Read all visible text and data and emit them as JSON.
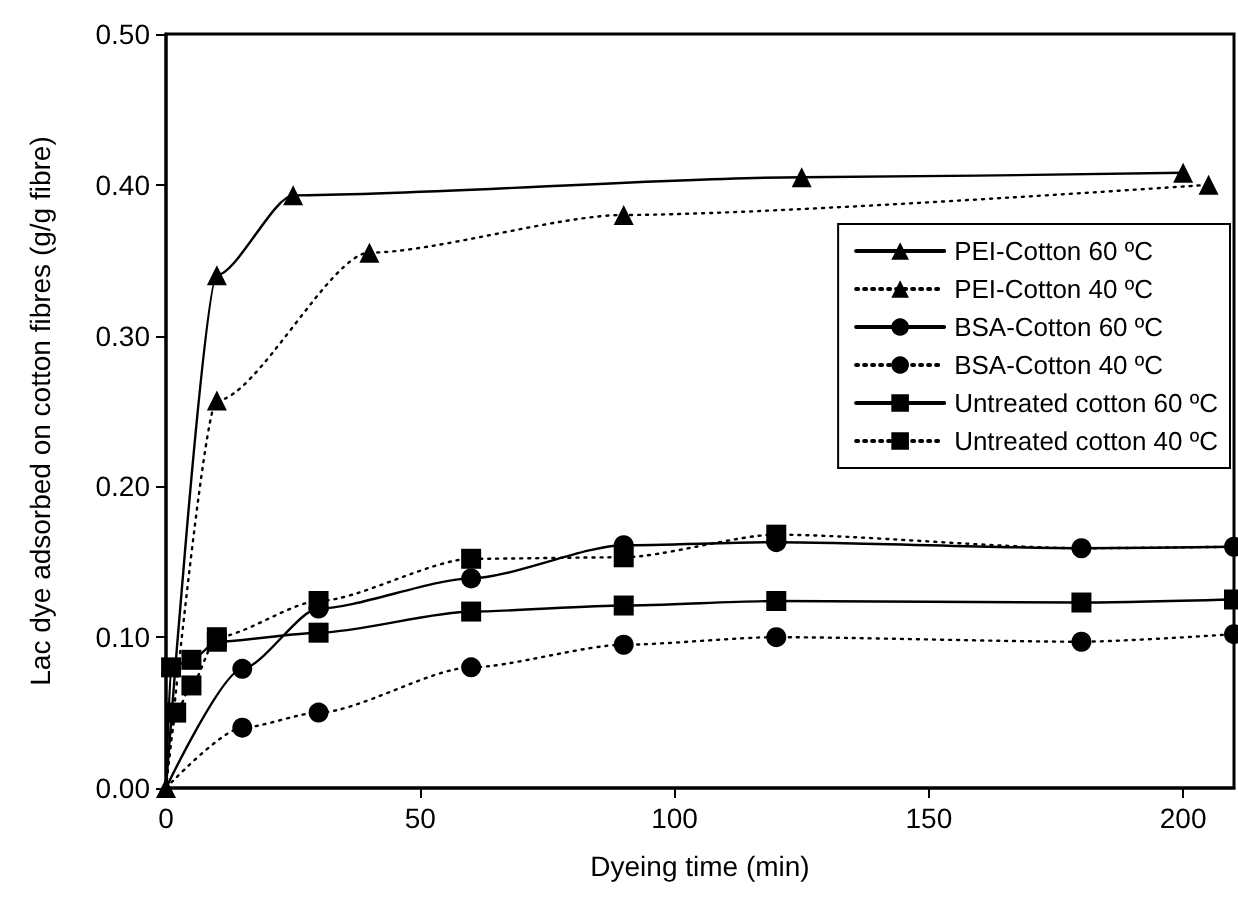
{
  "chart_data": {
    "type": "line",
    "xlabel": "Dyeing time (min)",
    "ylabel": "Lac dye adsorbed on cotton fibres (g/g fibre)",
    "xlim": [
      0,
      210
    ],
    "xticks": [
      0,
      50,
      100,
      150,
      200
    ],
    "ylim": [
      0,
      0.5
    ],
    "yticks": [
      {
        "value": 0,
        "label": "0.00"
      },
      {
        "value": 0.1,
        "label": "0.10"
      },
      {
        "value": 0.2,
        "label": "0.20"
      },
      {
        "value": 0.3,
        "label": "0.30"
      },
      {
        "value": 0.4,
        "label": "0.40"
      },
      {
        "value": 0.5,
        "label": "0.50"
      }
    ],
    "grid": false,
    "legend": "top right",
    "series": [
      {
        "name": "PEI-Cotton 60 ºC",
        "color": "#000000",
        "marker": "triangle",
        "line_style": "solid",
        "x": [
          0,
          10,
          25,
          125,
          200
        ],
        "values": [
          0,
          0.34,
          0.393,
          0.405,
          0.408
        ]
      },
      {
        "name": "PEI-Cotton 40 ºC",
        "color": "#000000",
        "marker": "triangle",
        "line_style": "dotted",
        "x": [
          0,
          10,
          40,
          90,
          205
        ],
        "values": [
          0,
          0.257,
          0.355,
          0.38,
          0.4
        ]
      },
      {
        "name": "BSA-Cotton 60 ºC",
        "color": "#000000",
        "marker": "circle",
        "line_style": "solid",
        "x": [
          0,
          15,
          30,
          60,
          90,
          120,
          180,
          210
        ],
        "values": [
          0,
          0.079,
          0.119,
          0.139,
          0.161,
          0.163,
          0.159,
          0.16
        ]
      },
      {
        "name": "BSA-Cotton 40 ºC",
        "color": "#000000",
        "marker": "circle",
        "line_style": "dotted",
        "x": [
          0,
          15,
          30,
          60,
          90,
          120,
          180,
          210
        ],
        "values": [
          0,
          0.04,
          0.05,
          0.08,
          0.095,
          0.1,
          0.097,
          0.102
        ]
      },
      {
        "name": "Untreated cotton 60 ºC",
        "color": "#000000",
        "marker": "square",
        "line_style": "solid",
        "x": [
          0,
          1,
          5,
          10,
          30,
          60,
          90,
          120,
          180,
          210
        ],
        "values": [
          0,
          0.08,
          0.085,
          0.097,
          0.103,
          0.117,
          0.121,
          0.124,
          0.123,
          0.125
        ]
      },
      {
        "name": "Untreated cotton 40 ºC",
        "color": "#000000",
        "marker": "square",
        "line_style": "dotted",
        "x": [
          0,
          2,
          5,
          10,
          30,
          60,
          90,
          120,
          180,
          210
        ],
        "values": [
          0,
          0.05,
          0.068,
          0.1,
          0.124,
          0.152,
          0.153,
          0.168,
          0.159,
          0.16
        ]
      }
    ]
  }
}
